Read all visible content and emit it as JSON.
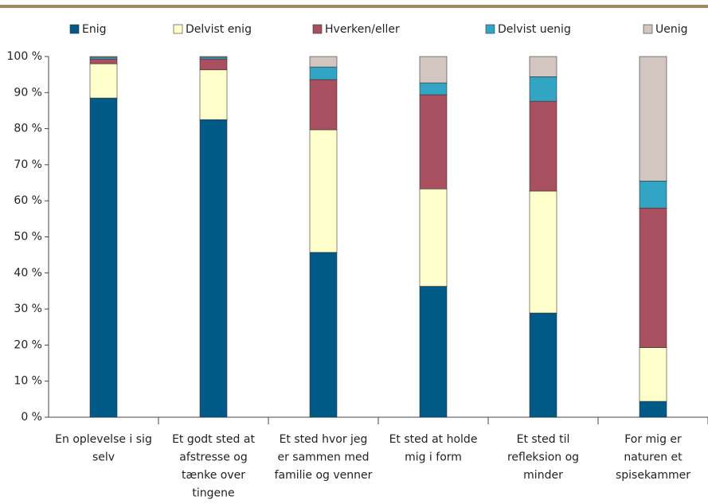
{
  "chart_data": {
    "type": "stacked_bar",
    "categories": [
      [
        "En oplevelse i sig",
        "selv"
      ],
      [
        "Et godt sted at",
        "afstresse og",
        "tænke over",
        "tingene"
      ],
      [
        "Et sted hvor jeg",
        "er sammen med",
        "familie og venner"
      ],
      [
        "Et sted at holde",
        "mig i form"
      ],
      [
        "Et sted til",
        "refleksion og",
        "minder"
      ],
      [
        "For mig er",
        "naturen et",
        "spisekammer"
      ]
    ],
    "series": [
      {
        "name": "Enig",
        "color": "#005a87",
        "values": [
          88.5,
          82.5,
          45.7,
          36.3,
          28.9,
          4.4
        ]
      },
      {
        "name": "Delvist enig",
        "color": "#ffffcc",
        "values": [
          9.5,
          13.8,
          34.0,
          27.0,
          33.8,
          14.9
        ]
      },
      {
        "name": "Hverken/eller",
        "color": "#a8505f",
        "values": [
          1.3,
          3.0,
          13.9,
          26.1,
          24.9,
          38.7
        ]
      },
      {
        "name": "Delvist uenig",
        "color": "#33a5c4",
        "values": [
          0.5,
          0.5,
          3.5,
          3.3,
          6.8,
          7.5
        ]
      },
      {
        "name": "Uenig",
        "color": "#d3c6c0",
        "values": [
          0.2,
          0.2,
          2.9,
          7.3,
          5.6,
          34.5
        ]
      }
    ],
    "ylim": [
      0,
      100
    ],
    "yticks": [
      {
        "value": 0,
        "label": "0 %"
      },
      {
        "value": 10,
        "label": "10 %"
      },
      {
        "value": 20,
        "label": "20 %"
      },
      {
        "value": 30,
        "label": "30 %"
      },
      {
        "value": 40,
        "label": "40 %"
      },
      {
        "value": 50,
        "label": "50 %"
      },
      {
        "value": 60,
        "label": "60 %"
      },
      {
        "value": 70,
        "label": "70 %"
      },
      {
        "value": 80,
        "label": "80 %"
      },
      {
        "value": 90,
        "label": "90 %"
      },
      {
        "value": 100,
        "label": "100 %"
      }
    ],
    "grid": false
  }
}
